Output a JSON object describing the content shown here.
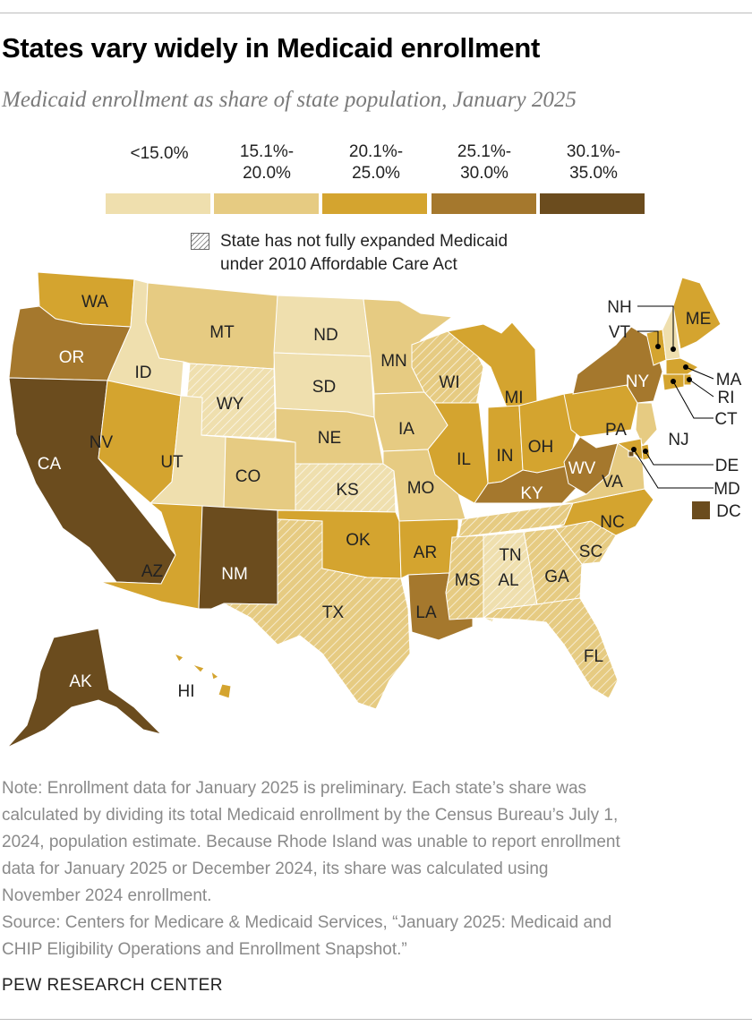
{
  "title": "States vary widely in Medicaid enrollment",
  "subtitle": "Medicaid enrollment as share of state population, January 2025",
  "legend": {
    "bins": [
      {
        "line1": "",
        "line2": "<15.0%",
        "color": "#efdfae"
      },
      {
        "line1": "15.1%-",
        "line2": "20.0%",
        "color": "#e6cb82"
      },
      {
        "line1": "20.1%-",
        "line2": "25.0%",
        "color": "#d4a42f"
      },
      {
        "line1": "25.1%-",
        "line2": "30.0%",
        "color": "#a5782d"
      },
      {
        "line1": "30.1%-",
        "line2": "35.0%",
        "color": "#6b4c1e"
      }
    ],
    "hatch_line1": "State has not fully expanded Medicaid",
    "hatch_line2": "under 2010 Affordable Care Act"
  },
  "states": [
    {
      "abbr": "WA",
      "bin": 2,
      "hatched": false
    },
    {
      "abbr": "OR",
      "bin": 3,
      "hatched": false
    },
    {
      "abbr": "CA",
      "bin": 4,
      "hatched": false
    },
    {
      "abbr": "ID",
      "bin": 0,
      "hatched": false
    },
    {
      "abbr": "NV",
      "bin": 2,
      "hatched": false
    },
    {
      "abbr": "MT",
      "bin": 1,
      "hatched": false
    },
    {
      "abbr": "WY",
      "bin": 0,
      "hatched": true
    },
    {
      "abbr": "UT",
      "bin": 0,
      "hatched": false
    },
    {
      "abbr": "CO",
      "bin": 1,
      "hatched": false
    },
    {
      "abbr": "AZ",
      "bin": 2,
      "hatched": false
    },
    {
      "abbr": "NM",
      "bin": 4,
      "hatched": false
    },
    {
      "abbr": "ND",
      "bin": 0,
      "hatched": false
    },
    {
      "abbr": "SD",
      "bin": 0,
      "hatched": false
    },
    {
      "abbr": "NE",
      "bin": 1,
      "hatched": false
    },
    {
      "abbr": "KS",
      "bin": 0,
      "hatched": true
    },
    {
      "abbr": "OK",
      "bin": 2,
      "hatched": false
    },
    {
      "abbr": "TX",
      "bin": 1,
      "hatched": true
    },
    {
      "abbr": "MN",
      "bin": 1,
      "hatched": false
    },
    {
      "abbr": "IA",
      "bin": 1,
      "hatched": false
    },
    {
      "abbr": "MO",
      "bin": 1,
      "hatched": false
    },
    {
      "abbr": "AR",
      "bin": 2,
      "hatched": false
    },
    {
      "abbr": "LA",
      "bin": 3,
      "hatched": false
    },
    {
      "abbr": "WI",
      "bin": 1,
      "hatched": true
    },
    {
      "abbr": "IL",
      "bin": 2,
      "hatched": false
    },
    {
      "abbr": "MI",
      "bin": 2,
      "hatched": false
    },
    {
      "abbr": "IN",
      "bin": 2,
      "hatched": false
    },
    {
      "abbr": "OH",
      "bin": 2,
      "hatched": false
    },
    {
      "abbr": "KY",
      "bin": 3,
      "hatched": false
    },
    {
      "abbr": "TN",
      "bin": 1,
      "hatched": true
    },
    {
      "abbr": "MS",
      "bin": 1,
      "hatched": true
    },
    {
      "abbr": "AL",
      "bin": 0,
      "hatched": true
    },
    {
      "abbr": "GA",
      "bin": 1,
      "hatched": true
    },
    {
      "abbr": "FL",
      "bin": 1,
      "hatched": true
    },
    {
      "abbr": "SC",
      "bin": 1,
      "hatched": true
    },
    {
      "abbr": "NC",
      "bin": 2,
      "hatched": false
    },
    {
      "abbr": "VA",
      "bin": 1,
      "hatched": false
    },
    {
      "abbr": "WV",
      "bin": 3,
      "hatched": false
    },
    {
      "abbr": "PA",
      "bin": 2,
      "hatched": false
    },
    {
      "abbr": "NY",
      "bin": 3,
      "hatched": false
    },
    {
      "abbr": "VT",
      "bin": 2,
      "hatched": false
    },
    {
      "abbr": "NH",
      "bin": 0,
      "hatched": false
    },
    {
      "abbr": "ME",
      "bin": 2,
      "hatched": false
    },
    {
      "abbr": "MA",
      "bin": 2,
      "hatched": false
    },
    {
      "abbr": "RI",
      "bin": 2,
      "hatched": false
    },
    {
      "abbr": "CT",
      "bin": 2,
      "hatched": false
    },
    {
      "abbr": "NJ",
      "bin": 1,
      "hatched": false
    },
    {
      "abbr": "DE",
      "bin": 2,
      "hatched": false
    },
    {
      "abbr": "MD",
      "bin": 2,
      "hatched": false
    },
    {
      "abbr": "DC",
      "bin": 4,
      "hatched": false
    },
    {
      "abbr": "AK",
      "bin": 4,
      "hatched": false
    },
    {
      "abbr": "HI",
      "bin": 2,
      "hatched": false
    }
  ],
  "note_lines": [
    "Note: Enrollment data for January 2025 is preliminary. Each state’s share was",
    "calculated by dividing its total Medicaid enrollment by the Census Bureau’s July 1,",
    "2024, population estimate. Because Rhode Island was unable to report enrollment",
    "data for January 2025 or December 2024, its share was calculated using",
    "November 2024 enrollment.",
    "Source: Centers for Medicare & Medicaid Services, “January 2025: Medicaid and",
    "CHIP Eligibility Operations and Enrollment Snapshot.”"
  ],
  "brand": "PEW RESEARCH CENTER"
}
